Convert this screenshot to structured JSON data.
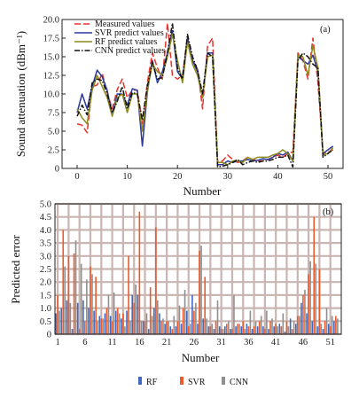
{
  "chart_data": [
    {
      "type": "line",
      "panel_label": "(a)",
      "title": "",
      "xlabel": "Number",
      "ylabel": "Sound attenuation (dBm⁻¹)",
      "xlim": [
        -3,
        53
      ],
      "ylim": [
        0,
        20
      ],
      "x_ticks": [
        0,
        10,
        20,
        30,
        40,
        50
      ],
      "y_ticks": [
        0,
        2.5,
        5.0,
        7.5,
        10.0,
        12.5,
        15.0,
        17.5,
        20.0
      ],
      "y_tick_labels": [
        "0",
        "2.5",
        "5.0",
        "7.5",
        "10.0",
        "12.5",
        "15.0",
        "17.5",
        "20.0"
      ],
      "grid": false,
      "legend_position": "top-left",
      "x": [
        0,
        1,
        2,
        3,
        4,
        5,
        6,
        7,
        8,
        9,
        10,
        11,
        12,
        13,
        14,
        15,
        16,
        17,
        18,
        19,
        20,
        21,
        22,
        23,
        24,
        25,
        26,
        27,
        28,
        29,
        30,
        31,
        32,
        33,
        34,
        35,
        36,
        37,
        38,
        39,
        40,
        41,
        42,
        43,
        44,
        45,
        46,
        47,
        48,
        49,
        50,
        51
      ],
      "series": [
        {
          "name": "Measured values",
          "color": "#e8322d",
          "dash": "7,3",
          "values": [
            6.0,
            5.8,
            4.8,
            11.0,
            11.2,
            12.8,
            10.2,
            8.0,
            10.6,
            12.0,
            9.5,
            10.5,
            10.5,
            6.0,
            11.5,
            15.5,
            13.5,
            12.0,
            19.5,
            12.5,
            12.0,
            12.5,
            17.5,
            14.5,
            13.5,
            8.0,
            16.5,
            17.5,
            1.0,
            1.0,
            1.8,
            1.2,
            0.8,
            1.0,
            1.5,
            1.2,
            1.0,
            1.0,
            1.2,
            1.5,
            1.8,
            1.5,
            2.0,
            2.2,
            15.5,
            14.5,
            12.0,
            17.5,
            11.5,
            2.0,
            2.2,
            2.5
          ]
        },
        {
          "name": "SVR predict values",
          "color": "#2b3a9a",
          "dash": "",
          "values": [
            7.5,
            10.0,
            8.0,
            11.0,
            13.2,
            12.3,
            10.5,
            7.2,
            10.0,
            10.0,
            8.5,
            10.7,
            10.5,
            3.0,
            10.2,
            14.5,
            11.5,
            13.0,
            15.5,
            18.5,
            13.0,
            12.0,
            17.5,
            14.5,
            13.0,
            9.5,
            15.5,
            15.5,
            0.5,
            0.5,
            1.0,
            0.8,
            1.0,
            1.0,
            1.2,
            1.0,
            1.1,
            1.3,
            1.2,
            1.5,
            2.0,
            1.8,
            2.2,
            1.0,
            15.0,
            14.5,
            14.0,
            15.2,
            13.0,
            2.0,
            2.5,
            3.0
          ]
        },
        {
          "name": "RF predict values",
          "color": "#8c8a1e",
          "dash": "",
          "values": [
            8.0,
            6.8,
            6.0,
            10.5,
            12.5,
            11.0,
            9.5,
            7.0,
            9.5,
            10.0,
            7.5,
            10.0,
            10.0,
            5.0,
            10.5,
            14.0,
            13.0,
            12.5,
            15.0,
            18.0,
            14.5,
            11.5,
            17.0,
            14.0,
            12.5,
            9.5,
            15.0,
            15.2,
            0.8,
            0.8,
            0.5,
            1.0,
            1.0,
            0.8,
            1.5,
            1.2,
            1.5,
            1.5,
            1.5,
            1.8,
            2.0,
            2.5,
            2.0,
            1.0,
            15.2,
            15.0,
            12.5,
            16.5,
            13.5,
            1.8,
            2.0,
            2.8
          ]
        },
        {
          "name": "CNN predict values",
          "color": "#111111",
          "dash": "6,2,1.5,2",
          "values": [
            7.0,
            8.5,
            7.2,
            11.5,
            12.0,
            11.8,
            10.0,
            7.5,
            9.0,
            11.0,
            8.0,
            10.2,
            10.0,
            6.5,
            11.0,
            14.2,
            12.0,
            12.2,
            15.5,
            19.5,
            13.5,
            12.0,
            18.0,
            15.0,
            13.2,
            10.0,
            15.5,
            15.0,
            0.2,
            0.3,
            0.5,
            0.8,
            1.2,
            0.5,
            0.8,
            1.0,
            0.8,
            1.0,
            1.0,
            1.2,
            1.5,
            1.5,
            1.8,
            0.2,
            14.5,
            15.5,
            15.0,
            14.0,
            13.5,
            1.5,
            2.0,
            2.5
          ]
        }
      ]
    },
    {
      "type": "bar",
      "panel_label": "(b)",
      "title": "",
      "xlabel": "Number",
      "ylabel": "Predicted error",
      "xlim": [
        0.5,
        53
      ],
      "ylim": [
        0,
        5
      ],
      "x_ticks": [
        1,
        6,
        11,
        16,
        21,
        26,
        31,
        36,
        41,
        46,
        51
      ],
      "y_ticks": [
        0,
        0.5,
        1.0,
        1.5,
        2.0,
        2.5,
        3.0,
        3.5,
        4.0,
        4.5,
        5.0
      ],
      "y_tick_labels": [
        "0",
        "0.5",
        "1.0",
        "1.5",
        "2.0",
        "2.5",
        "3.0",
        "3.5",
        "4.0",
        "4.5",
        "5.0"
      ],
      "grid": true,
      "legend_position": "bottom-center",
      "categories": [
        1,
        2,
        3,
        4,
        5,
        6,
        7,
        8,
        9,
        10,
        11,
        12,
        13,
        14,
        15,
        16,
        17,
        18,
        19,
        20,
        21,
        22,
        23,
        24,
        25,
        26,
        27,
        28,
        29,
        30,
        31,
        32,
        33,
        34,
        35,
        36,
        37,
        38,
        39,
        40,
        41,
        42,
        43,
        44,
        45,
        46,
        47,
        48,
        49,
        50,
        51,
        52
      ],
      "series": [
        {
          "name": "RF",
          "color": "#4169c4",
          "values": [
            0.8,
            1.0,
            1.3,
            0.2,
            1.2,
            1.3,
            1.0,
            0.9,
            0.7,
            0.8,
            0.7,
            0.9,
            0.6,
            0.9,
            1.5,
            1.5,
            0.5,
            0.2,
            1.0,
            0.8,
            0.4,
            0.3,
            0.3,
            0.4,
            0.9,
            1.5,
            0.4,
            0.6,
            0.3,
            0.2,
            0.3,
            0.3,
            0.2,
            0.3,
            0.3,
            0.4,
            0.2,
            0.3,
            0.3,
            0.2,
            0.3,
            0.4,
            0.1,
            0.6,
            0.4,
            1.2,
            0.8,
            0.5,
            0.3,
            0.2,
            0.4,
            0.5
          ]
        },
        {
          "name": "SVR",
          "color": "#ee5a2a",
          "values": [
            1.5,
            4.0,
            3.0,
            3.1,
            0.2,
            0.5,
            2.6,
            2.2,
            0.6,
            1.0,
            0.5,
            1.0,
            0.8,
            3.0,
            1.2,
            4.7,
            0.5,
            1.8,
            4.1,
            0.5,
            0.5,
            0.2,
            0.5,
            1.0,
            0.3,
            0.9,
            3.2,
            2.2,
            0.3,
            0.5,
            0.2,
            0.4,
            0.2,
            0.4,
            0.5,
            0.3,
            0.3,
            0.5,
            0.2,
            0.5,
            0.4,
            0.3,
            0.5,
            0.2,
            0.7,
            1.5,
            2.3,
            4.5,
            2.5,
            0.5,
            0.3,
            0.7
          ]
        },
        {
          "name": "CNN",
          "color": "#8f8f8f",
          "values": [
            0.9,
            2.6,
            1.2,
            3.6,
            2.7,
            2.1,
            2.3,
            0.5,
            0.6,
            1.5,
            1.6,
            0.8,
            0.3,
            0.5,
            1.9,
            0.5,
            0.8,
            0.7,
            1.3,
            0.6,
            0.5,
            0.7,
            1.1,
            1.7,
            0.4,
            1.2,
            3.4,
            0.6,
            0.4,
            1.3,
            0.2,
            0.5,
            1.5,
            0.4,
            0.2,
            0.9,
            0.5,
            0.7,
            0.9,
            0.6,
            0.3,
            0.8,
            0.3,
            0.5,
            0.7,
            1.7,
            2.8,
            2.7,
            0.4,
            1.0,
            0.7,
            0.6
          ]
        }
      ]
    }
  ]
}
